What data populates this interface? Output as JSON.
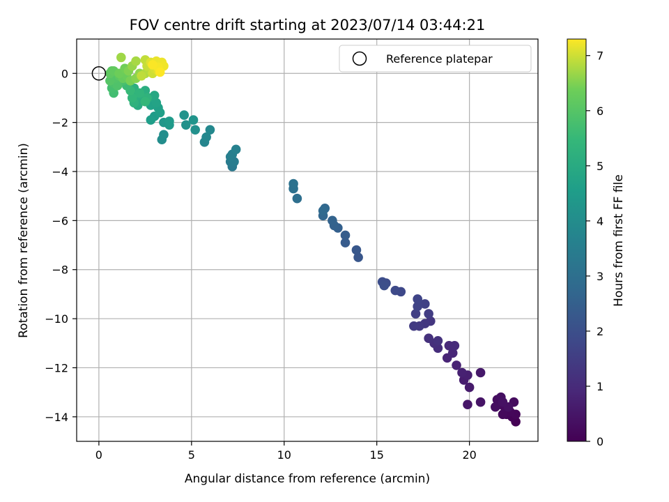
{
  "chart_data": {
    "type": "scatter",
    "title": "FOV centre drift starting at 2023/07/14 03:44:21",
    "xlabel": "Angular distance from reference (arcmin)",
    "ylabel": "Rotation from reference (arcmin)",
    "xlim": [
      -1.2,
      23.7
    ],
    "ylim": [
      -15.0,
      1.4
    ],
    "xticks": [
      0,
      5,
      10,
      15,
      20
    ],
    "yticks": [
      0,
      -2,
      -4,
      -6,
      -8,
      -10,
      -12,
      -14
    ],
    "grid": true,
    "legend": {
      "position": "top-right",
      "entries": [
        "Reference platepar"
      ]
    },
    "colorbar": {
      "label": "Hours from first FF file",
      "colormap": "viridis",
      "range": [
        0,
        7.3
      ],
      "ticks": [
        0,
        1,
        2,
        3,
        4,
        5,
        6,
        7
      ]
    },
    "reference_point": {
      "x": 0,
      "y": 0,
      "label": "Reference platepar"
    },
    "series": [
      {
        "points": [
          [
            22.5,
            -14.2,
            0.0
          ],
          [
            22.3,
            -14.0,
            0.05
          ],
          [
            22.0,
            -13.9,
            0.1
          ],
          [
            22.5,
            -13.9,
            0.12
          ],
          [
            22.2,
            -13.8,
            0.15
          ],
          [
            21.8,
            -13.9,
            0.18
          ],
          [
            21.6,
            -13.5,
            0.2
          ],
          [
            21.9,
            -13.6,
            0.22
          ],
          [
            22.4,
            -13.4,
            0.25
          ],
          [
            21.5,
            -13.3,
            0.28
          ],
          [
            21.4,
            -13.6,
            0.3
          ],
          [
            21.7,
            -13.2,
            0.32
          ],
          [
            22.1,
            -13.6,
            0.35
          ],
          [
            21.8,
            -13.4,
            0.38
          ],
          [
            20.6,
            -13.4,
            0.45
          ],
          [
            19.9,
            -13.5,
            0.5
          ],
          [
            20.6,
            -12.2,
            0.55
          ],
          [
            20.0,
            -12.8,
            0.6
          ],
          [
            19.7,
            -12.5,
            0.65
          ],
          [
            19.9,
            -12.3,
            0.7
          ],
          [
            19.6,
            -12.2,
            0.75
          ],
          [
            19.3,
            -11.9,
            0.8
          ],
          [
            18.8,
            -11.6,
            0.85
          ],
          [
            19.1,
            -11.4,
            0.9
          ],
          [
            18.9,
            -11.1,
            0.95
          ],
          [
            19.2,
            -11.1,
            1.0
          ],
          [
            18.3,
            -11.2,
            1.05
          ],
          [
            18.1,
            -11.0,
            1.1
          ],
          [
            17.8,
            -10.8,
            1.15
          ],
          [
            18.3,
            -10.9,
            1.2
          ],
          [
            17.9,
            -10.1,
            1.3
          ],
          [
            17.6,
            -10.2,
            1.35
          ],
          [
            17.3,
            -10.3,
            1.4
          ],
          [
            17.0,
            -10.3,
            1.45
          ],
          [
            17.8,
            -9.8,
            1.5
          ],
          [
            17.1,
            -9.8,
            1.55
          ],
          [
            17.6,
            -9.4,
            1.6
          ],
          [
            17.2,
            -9.5,
            1.65
          ],
          [
            17.2,
            -9.2,
            1.7
          ],
          [
            16.3,
            -8.9,
            1.8
          ],
          [
            16.0,
            -8.85,
            1.85
          ],
          [
            15.5,
            -8.55,
            1.9
          ],
          [
            15.3,
            -8.5,
            1.95
          ],
          [
            15.4,
            -8.65,
            2.0
          ],
          [
            14.0,
            -7.5,
            2.2
          ],
          [
            13.9,
            -7.2,
            2.25
          ],
          [
            13.3,
            -6.9,
            2.35
          ],
          [
            13.3,
            -6.6,
            2.4
          ],
          [
            12.9,
            -6.3,
            2.5
          ],
          [
            12.7,
            -6.2,
            2.55
          ],
          [
            12.6,
            -6.0,
            2.6
          ],
          [
            12.1,
            -5.8,
            2.7
          ],
          [
            12.2,
            -5.5,
            2.75
          ],
          [
            12.1,
            -5.6,
            2.8
          ],
          [
            10.7,
            -5.1,
            3.0
          ],
          [
            10.5,
            -4.7,
            3.05
          ],
          [
            10.5,
            -4.5,
            3.1
          ],
          [
            7.2,
            -3.8,
            3.35
          ],
          [
            7.1,
            -3.6,
            3.4
          ],
          [
            7.3,
            -3.6,
            3.45
          ],
          [
            7.1,
            -3.4,
            3.5
          ],
          [
            7.2,
            -3.3,
            3.55
          ],
          [
            7.4,
            -3.1,
            3.6
          ],
          [
            5.7,
            -2.8,
            3.75
          ],
          [
            5.8,
            -2.6,
            3.8
          ],
          [
            6.0,
            -2.3,
            3.85
          ],
          [
            3.4,
            -2.7,
            4.0
          ],
          [
            3.5,
            -2.5,
            4.05
          ],
          [
            5.2,
            -2.3,
            4.1
          ],
          [
            4.7,
            -2.1,
            4.15
          ],
          [
            4.6,
            -1.7,
            4.2
          ],
          [
            5.1,
            -1.9,
            4.25
          ],
          [
            3.5,
            -2.0,
            4.35
          ],
          [
            3.8,
            -2.1,
            4.4
          ],
          [
            3.8,
            -1.95,
            4.45
          ],
          [
            3.0,
            -1.75,
            4.5
          ],
          [
            2.8,
            -1.9,
            4.55
          ],
          [
            3.3,
            -1.6,
            4.6
          ],
          [
            3.2,
            -1.4,
            4.65
          ],
          [
            2.8,
            -1.3,
            4.7
          ],
          [
            3.1,
            -1.2,
            4.75
          ],
          [
            2.7,
            -1.0,
            4.8
          ],
          [
            2.4,
            -0.8,
            4.85
          ],
          [
            3.0,
            -0.9,
            4.9
          ],
          [
            2.3,
            -1.1,
            4.95
          ],
          [
            2.1,
            -1.3,
            5.0
          ],
          [
            2.0,
            -1.1,
            5.05
          ],
          [
            2.5,
            -0.7,
            5.1
          ],
          [
            2.1,
            -0.9,
            5.15
          ],
          [
            1.9,
            -0.6,
            5.2
          ],
          [
            1.9,
            -1.2,
            5.25
          ],
          [
            2.6,
            -1.0,
            5.3
          ],
          [
            2.2,
            -0.8,
            5.35
          ],
          [
            1.8,
            -1.0,
            5.4
          ],
          [
            2.5,
            -1.15,
            5.45
          ],
          [
            1.7,
            -0.7,
            5.5
          ],
          [
            1.5,
            -0.5,
            5.6
          ],
          [
            0.8,
            -0.8,
            5.7
          ],
          [
            0.7,
            -0.6,
            5.75
          ],
          [
            1.3,
            -0.3,
            5.8
          ],
          [
            0.8,
            -0.4,
            5.85
          ],
          [
            1.0,
            -0.5,
            5.9
          ],
          [
            0.9,
            -0.2,
            5.95
          ],
          [
            0.6,
            -0.3,
            6.0
          ],
          [
            0.7,
            0.1,
            6.05
          ],
          [
            1.1,
            -0.1,
            6.1
          ],
          [
            0.6,
            0.0,
            6.15
          ],
          [
            0.8,
            0.1,
            6.2
          ],
          [
            1.3,
            -0.2,
            6.25
          ],
          [
            1.5,
            -0.1,
            6.3
          ],
          [
            1.1,
            0.0,
            6.35
          ],
          [
            1.4,
            0.2,
            6.4
          ],
          [
            1.7,
            -0.3,
            6.45
          ],
          [
            1.6,
            0.1,
            6.5
          ],
          [
            2.0,
            -0.2,
            6.55
          ],
          [
            2.2,
            0.0,
            6.6
          ],
          [
            1.8,
            0.3,
            6.65
          ],
          [
            1.2,
            0.65,
            6.7
          ],
          [
            2.0,
            0.5,
            6.75
          ],
          [
            2.5,
            0.0,
            6.8
          ],
          [
            2.7,
            0.15,
            6.85
          ],
          [
            2.3,
            -0.1,
            6.9
          ],
          [
            2.5,
            0.55,
            6.92
          ],
          [
            2.6,
            0.3,
            6.95
          ],
          [
            2.9,
            0.0,
            7.0
          ],
          [
            3.0,
            0.2,
            7.05
          ],
          [
            2.8,
            0.45,
            7.1
          ],
          [
            3.2,
            0.1,
            7.12
          ],
          [
            3.3,
            0.35,
            7.15
          ],
          [
            3.1,
            0.5,
            7.18
          ],
          [
            3.4,
            0.45,
            7.2
          ],
          [
            3.5,
            0.3,
            7.22
          ],
          [
            3.2,
            0.25,
            7.25
          ],
          [
            2.9,
            0.35,
            7.28
          ],
          [
            3.3,
            0.05,
            7.3
          ]
        ]
      }
    ]
  }
}
